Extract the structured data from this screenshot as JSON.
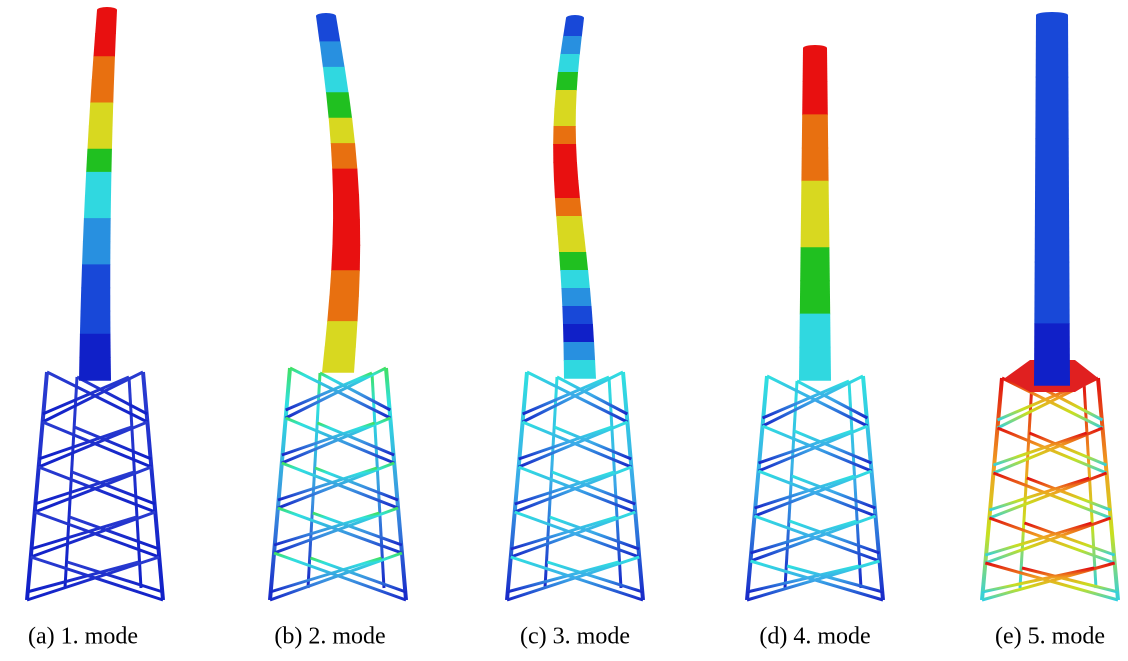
{
  "captions": [
    "(a) 1. mode",
    "(b) 2. mode",
    "(c) 3. mode",
    "(d) 4. mode",
    "(e) 5. mode"
  ]
}
